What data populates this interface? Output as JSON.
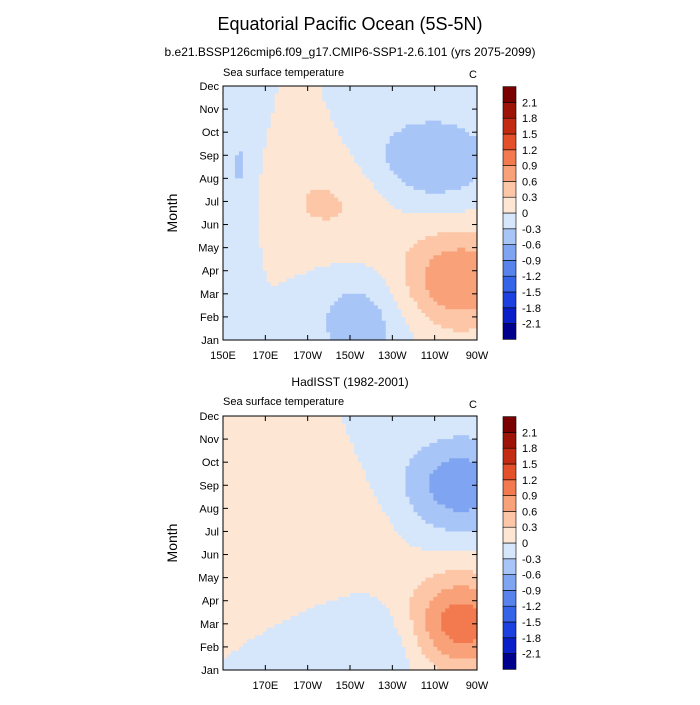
{
  "figure": {
    "title": "Equatorial Pacific Ocean (5S-5N)"
  },
  "colorbar": {
    "levels": [
      -2.1,
      -1.8,
      -1.5,
      -1.2,
      -0.9,
      -0.6,
      -0.3,
      0,
      0.3,
      0.6,
      0.9,
      1.2,
      1.5,
      1.8,
      2.1
    ],
    "colors": [
      "#00008f",
      "#0a1fc9",
      "#1c41e0",
      "#3664e8",
      "#5983ec",
      "#7ea4f2",
      "#a8c5f7",
      "#d6e6fb",
      "#fde6d4",
      "#fcc6a7",
      "#f9a27a",
      "#f37a4e",
      "#e3502a",
      "#c32c12",
      "#9e1307",
      "#7a0000"
    ]
  },
  "chart_data": [
    {
      "type": "heatmap",
      "subtitle": "b.e21.BSSP126cmip6.f09_g17.CMIP6-SSP1-2.6.101 (yrs 2075-2099)",
      "left_label": "Sea surface temperature",
      "right_label": "C",
      "ylabel": "Month",
      "x_ticks": [
        "150E",
        "170E",
        "170W",
        "150W",
        "130W",
        "110W",
        "90W"
      ],
      "y_ticks": [
        "Jan",
        "Feb",
        "Mar",
        "Apr",
        "May",
        "Jun",
        "Jul",
        "Aug",
        "Sep",
        "Oct",
        "Nov",
        "Dec"
      ],
      "x_range": [
        "150E",
        "90W"
      ],
      "units": "C",
      "features": [
        {
          "lon": 215,
          "month": 1.8,
          "amp": -0.5,
          "sx": 16,
          "sy": 1.5
        },
        {
          "lon": 200,
          "month": 7.0,
          "amp": 0.35,
          "sx": 22,
          "sy": 1.6
        },
        {
          "lon": 262,
          "month": 3.6,
          "amp": 0.9,
          "sx": 20,
          "sy": 1.5
        },
        {
          "lon": 248,
          "month": 8.8,
          "amp": -0.6,
          "sx": 22,
          "sy": 1.4
        },
        {
          "lon": 158,
          "month": 8.0,
          "amp": -0.35,
          "sx": 6,
          "sy": 3.0
        }
      ]
    },
    {
      "type": "heatmap",
      "subtitle": "HadISST (1982-2001)",
      "left_label": "Sea surface temperature",
      "right_label": "C",
      "ylabel": "Month",
      "x_ticks": [
        "170E",
        "170W",
        "150W",
        "130W",
        "110W",
        "90W"
      ],
      "y_ticks": [
        "Jan",
        "Feb",
        "Mar",
        "Apr",
        "May",
        "Jun",
        "Jul",
        "Aug",
        "Sep",
        "Oct",
        "Nov",
        "Dec"
      ],
      "x_range": [
        "150E",
        "90W"
      ],
      "units": "C",
      "features": [
        {
          "lon": 225,
          "month": 2.0,
          "amp": -0.35,
          "sx": 18,
          "sy": 1.4
        },
        {
          "lon": 200,
          "month": 7.0,
          "amp": 0.28,
          "sx": 22,
          "sy": 1.6
        },
        {
          "lon": 262,
          "month": 3.0,
          "amp": 1.1,
          "sx": 18,
          "sy": 1.5
        },
        {
          "lon": 262,
          "month": 9.0,
          "amp": -0.8,
          "sx": 20,
          "sy": 1.5
        }
      ]
    }
  ]
}
